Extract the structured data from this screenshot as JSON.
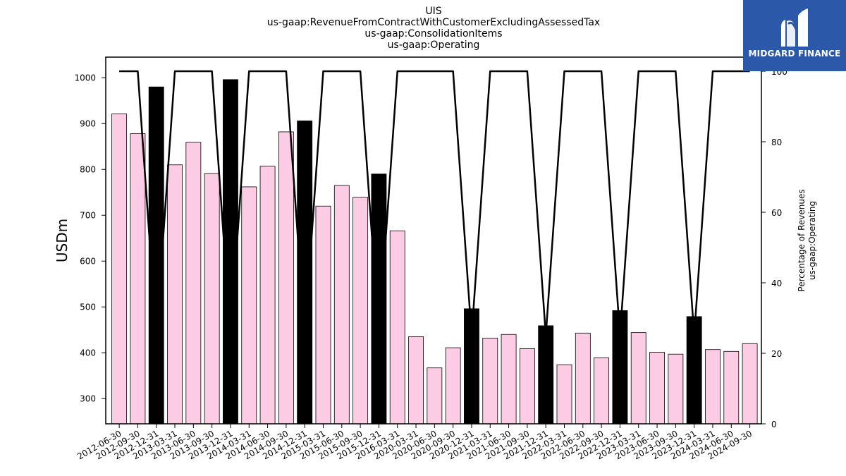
{
  "chart_data": {
    "type": "bar",
    "title_lines": [
      "UIS",
      "us-gaap:RevenueFromContractWithCustomerExcludingAssessedTax",
      "us-gaap:ConsolidationItems",
      "us-gaap:Operating"
    ],
    "ylabel": "USDm",
    "y2label_lines": [
      "Percentage of Revenues",
      "us-gaap:Operating"
    ],
    "ylim": [
      245,
      1045
    ],
    "y2lim": [
      0,
      104
    ],
    "yticks": [
      300,
      400,
      500,
      600,
      700,
      800,
      900,
      1000
    ],
    "y2ticks": [
      0,
      20,
      40,
      60,
      80,
      100
    ],
    "grid": false,
    "categories": [
      "2012-06-30",
      "2012-09-30",
      "2012-12-31",
      "2013-03-31",
      "2013-06-30",
      "2013-09-30",
      "2013-12-31",
      "2014-03-31",
      "2014-06-30",
      "2014-09-30",
      "2014-12-31",
      "2015-03-31",
      "2015-06-30",
      "2015-09-30",
      "2015-12-31",
      "2016-03-31",
      "2020-03-31",
      "2020-06-30",
      "2020-09-30",
      "2020-12-31",
      "2021-03-31",
      "2021-06-30",
      "2021-09-30",
      "2021-12-31",
      "2022-03-31",
      "2022-06-30",
      "2022-09-30",
      "2022-12-31",
      "2023-03-31",
      "2023-06-30",
      "2023-09-30",
      "2023-12-31",
      "2024-03-31",
      "2024-06-30",
      "2024-09-30"
    ],
    "series": [
      {
        "type": "bar",
        "axis": "left",
        "values": [
          921,
          878,
          980,
          810,
          859,
          791,
          996,
          762,
          807,
          882,
          906,
          720,
          765,
          739,
          790,
          666,
          435,
          367,
          411,
          496,
          432,
          440,
          409,
          459,
          374,
          443,
          389,
          492,
          444,
          401,
          397,
          479,
          407,
          403,
          420
        ],
        "highlight_indices": [
          2,
          6,
          10,
          14,
          19,
          23,
          27,
          31
        ]
      },
      {
        "type": "line",
        "axis": "right",
        "values": [
          100,
          100,
          25,
          100,
          100,
          100,
          25,
          100,
          100,
          100,
          25,
          100,
          100,
          100,
          25,
          100,
          100,
          100,
          100,
          25,
          100,
          100,
          100,
          25,
          100,
          100,
          100,
          25,
          100,
          100,
          100,
          25,
          100,
          100,
          100
        ]
      }
    ],
    "colors": {
      "bar": "#fccbe4",
      "bar_highlight": "#000000",
      "bar_edge": "#000000",
      "line": "#000000"
    }
  },
  "logo": {
    "text": "MIDGARD FINANCE",
    "background": "#2b58a8",
    "icon": "midgard-logo-icon"
  }
}
